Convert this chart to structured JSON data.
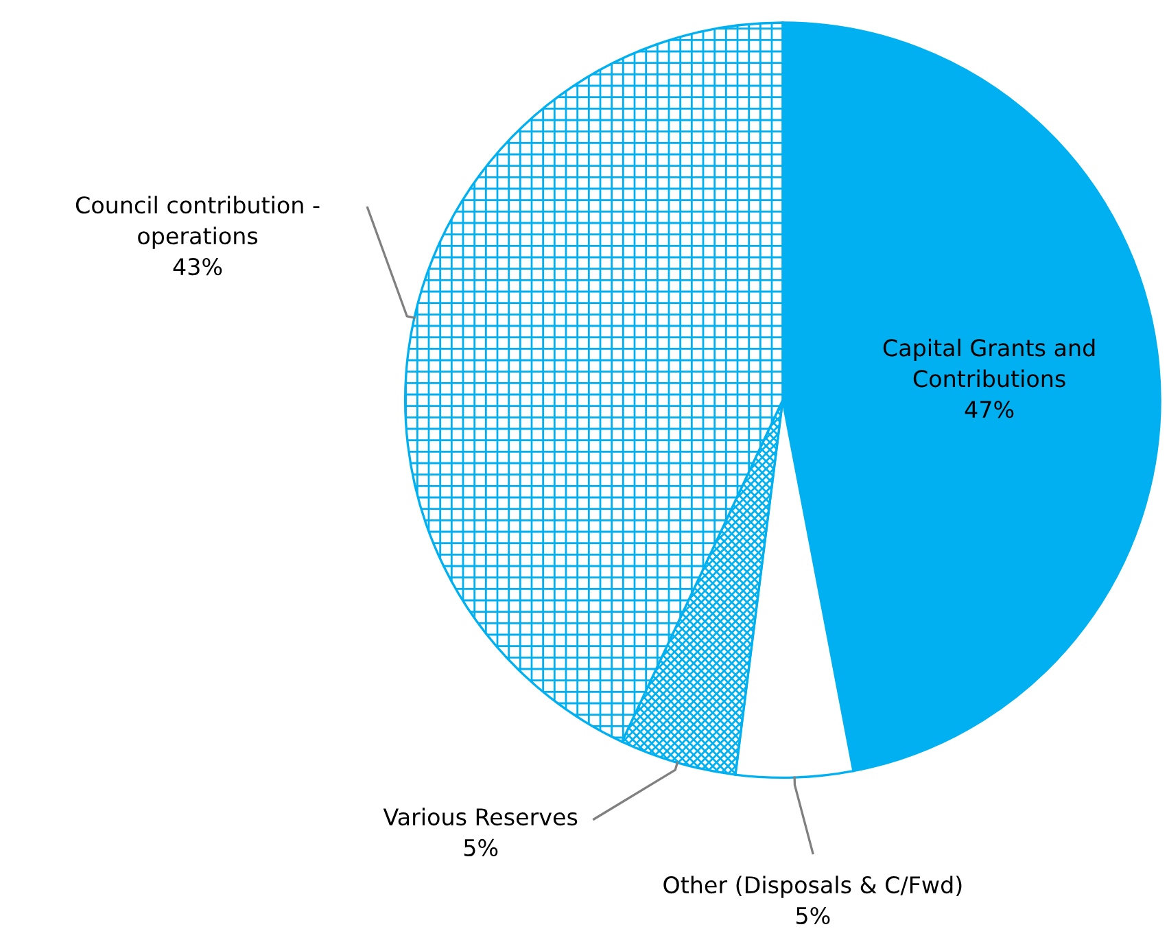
{
  "chart_data": {
    "type": "pie",
    "categories": [
      "Capital Grants and\nContributions",
      "Other (Disposals & C/Fwd)",
      "Various Reserves",
      "Council contribution -\noperations"
    ],
    "values": [
      47,
      5,
      5,
      43
    ],
    "value_labels": [
      "47%",
      "5%",
      "5%",
      "43%"
    ],
    "colors": [
      "#00b0f0",
      "#ffffff",
      "#00b0f0",
      "#00b0f0"
    ],
    "legend": false
  }
}
